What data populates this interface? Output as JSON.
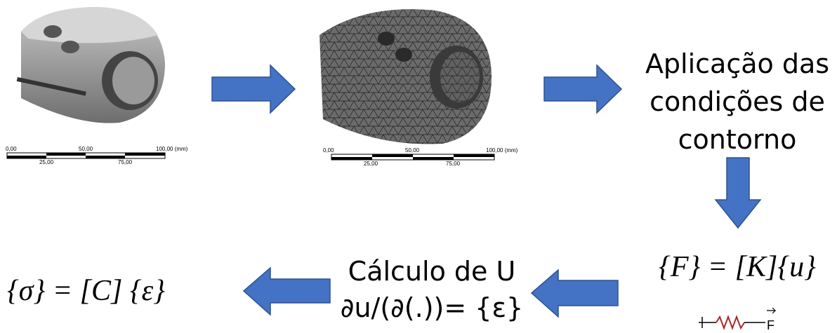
{
  "scale_bars": [
    {
      "top_labels": [
        "0,00",
        "50,00",
        "100,00 (mm)"
      ],
      "bottom_labels": [
        "25,00",
        "75,00"
      ]
    },
    {
      "top_labels": [
        "0,00",
        "50,00",
        "100,00 (mm)"
      ],
      "bottom_labels": [
        "25,00",
        "75,00"
      ]
    }
  ],
  "steps": {
    "boundary_conditions": [
      "Aplicação das",
      "condições de",
      "contorno"
    ],
    "equilibrium": "{F} =  [K]{u}",
    "spring_label": "F",
    "strain": {
      "title": "Cálculo de U",
      "formula": "∂u/(∂(.))= {ε}"
    },
    "stress": "{σ}  = [C] {ε}"
  }
}
